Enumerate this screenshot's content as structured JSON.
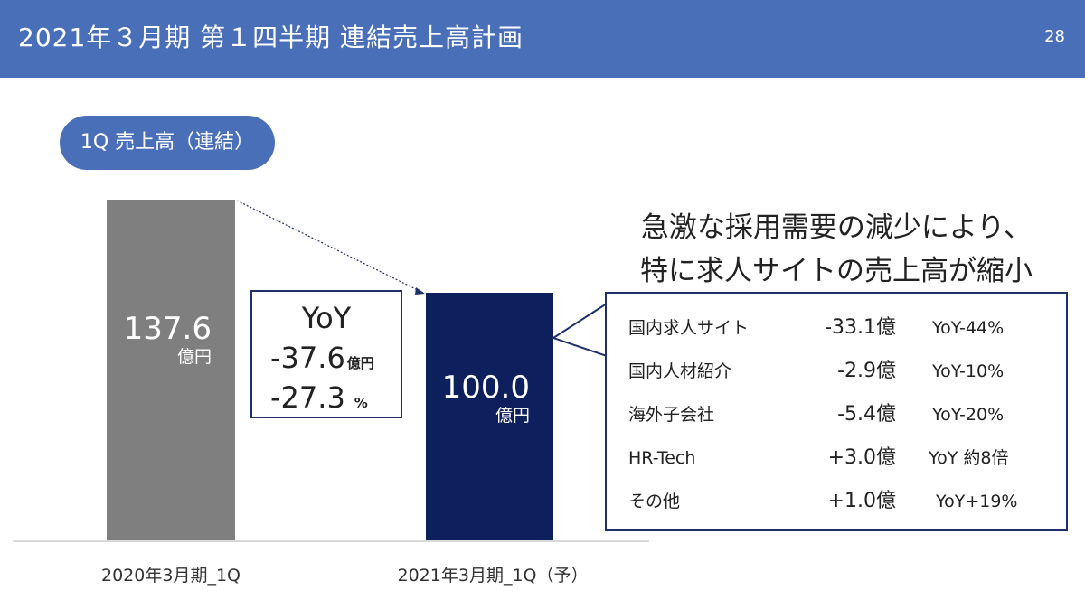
{
  "header": {
    "title": "2021年３月期 第１四半期 連結売上高計画",
    "page_number": "28"
  },
  "section_label": "1Q 売上高（連結）",
  "headline": [
    "急激な採用需要の減少により、",
    "特に求人サイトの売上高が縮小"
  ],
  "yoy": {
    "title": "YoY",
    "amount": "-37.6",
    "amount_unit": "億円",
    "percent": "-27.3",
    "percent_unit": "%"
  },
  "breakdown": [
    {
      "segment": "国内求人サイト",
      "amount": "-33.1億",
      "yoy": "YoY-44%"
    },
    {
      "segment": "国内人材紹介",
      "amount": "-2.9億",
      "yoy": "YoY-10%"
    },
    {
      "segment": "海外子会社",
      "amount": "-5.4億",
      "yoy": "YoY-20%"
    },
    {
      "segment": "HR-Tech",
      "amount": "+3.0億",
      "yoy": "YoY 約8倍"
    },
    {
      "segment": "その他",
      "amount": "+1.0億",
      "yoy": "YoY+19%"
    }
  ],
  "chart_data": {
    "type": "bar",
    "categories": [
      "2020年3月期_1Q",
      "2021年3月期_1Q（予）"
    ],
    "values": [
      137.6,
      100.0
    ],
    "value_labels": [
      "137.6",
      "100.0"
    ],
    "unit_label": "億円",
    "colors": [
      "#7f7f7f",
      "#0d1f5c"
    ],
    "ylim": [
      0,
      137.6
    ],
    "grid": false
  },
  "colors": {
    "header": "#4a6fb9",
    "accent_navy": "#1f2f6a"
  }
}
